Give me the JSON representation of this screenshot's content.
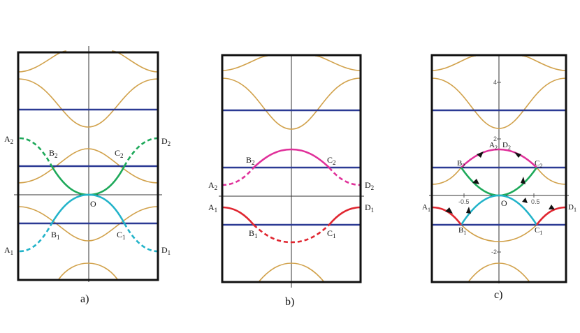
{
  "figure": {
    "colors": {
      "frame": "#111111",
      "axis": "#333333",
      "band": "#d1a14a",
      "flat": "#2b3a94",
      "green": "#1ea95a",
      "cyan": "#22b3c9",
      "magenta": "#e0309a",
      "red": "#e02630"
    },
    "panels": [
      {
        "caption": "a)",
        "labels": {
          "A2": {
            "base": "A",
            "sub": "2"
          },
          "D2": {
            "base": "D",
            "sub": "2"
          },
          "B2": {
            "base": "B",
            "sub": "2"
          },
          "C2": {
            "base": "C",
            "sub": "2"
          },
          "O": {
            "base": "O",
            "sub": ""
          },
          "B1": {
            "base": "B",
            "sub": "1"
          },
          "C1": {
            "base": "C",
            "sub": "1"
          },
          "A1": {
            "base": "A",
            "sub": "1"
          },
          "D1": {
            "base": "D",
            "sub": "1"
          }
        }
      },
      {
        "caption": "b)",
        "labels": {
          "B2": {
            "base": "B",
            "sub": "2"
          },
          "C2": {
            "base": "C",
            "sub": "2"
          },
          "A2": {
            "base": "A",
            "sub": "2"
          },
          "D2": {
            "base": "D",
            "sub": "2"
          },
          "A1": {
            "base": "A",
            "sub": "1"
          },
          "D1": {
            "base": "D",
            "sub": "1"
          },
          "B1": {
            "base": "B",
            "sub": "1"
          },
          "C1": {
            "base": "C",
            "sub": "1"
          }
        }
      },
      {
        "caption": "c)",
        "ticks": {
          "y_top": "4",
          "y_mid": "2",
          "y_bot": "-2",
          "x_left": "-0.5",
          "x_right": "0.5"
        },
        "labels": {
          "A2": {
            "base": "A",
            "sub": "2"
          },
          "D2": {
            "base": "D",
            "sub": "2"
          },
          "B2": {
            "base": "B",
            "sub": "2"
          },
          "C2": {
            "base": "C",
            "sub": "2"
          },
          "O": {
            "base": "O",
            "sub": ""
          },
          "A1": {
            "base": "A",
            "sub": "1"
          },
          "D1": {
            "base": "D",
            "sub": "1"
          },
          "B1": {
            "base": "B",
            "sub": "1"
          },
          "C1": {
            "base": "C",
            "sub": "1"
          }
        }
      }
    ]
  }
}
